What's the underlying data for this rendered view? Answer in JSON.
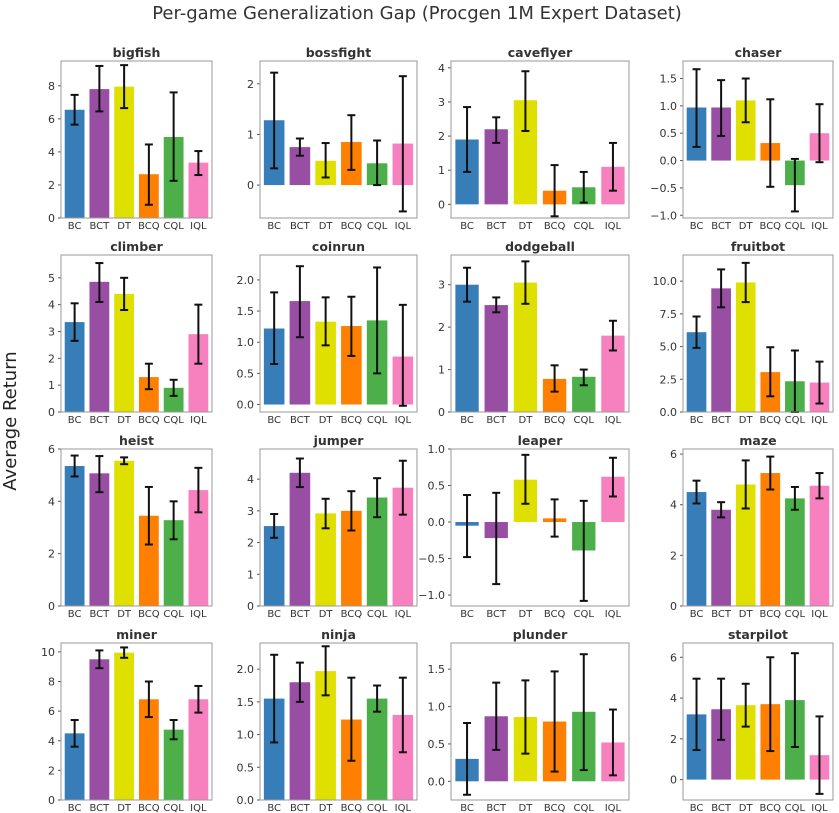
{
  "figure": {
    "title": "Per-game Generalization Gap (Procgen 1M Expert Dataset)",
    "ylabel": "Average Return"
  },
  "colors": {
    "BC": "#377eb8",
    "BCT": "#984ea3",
    "DT": "#dfdf00",
    "BCQ": "#ff7f00",
    "CQL": "#4daf4a",
    "IQL": "#f781bf"
  },
  "chart_data": [
    {
      "type": "bar",
      "title": "bigfish",
      "categories": [
        "BC",
        "BCT",
        "DT",
        "BCQ",
        "CQL",
        "IQL"
      ],
      "values": [
        6.55,
        7.8,
        7.95,
        2.65,
        4.9,
        3.35
      ],
      "err_low": [
        5.65,
        6.45,
        6.65,
        0.8,
        2.25,
        2.6
      ],
      "err_high": [
        7.45,
        9.2,
        9.25,
        4.45,
        7.6,
        4.05
      ],
      "ylim": [
        0,
        9.5
      ],
      "yticks": [
        0,
        2,
        4,
        6,
        8
      ],
      "yticklabels": [
        "0",
        "2",
        "4",
        "6",
        "8"
      ]
    },
    {
      "type": "bar",
      "title": "bossfight",
      "categories": [
        "BC",
        "BCT",
        "DT",
        "BCQ",
        "CQL",
        "IQL"
      ],
      "values": [
        1.28,
        0.75,
        0.48,
        0.85,
        0.43,
        0.82
      ],
      "err_low": [
        0.33,
        0.58,
        0.15,
        0.3,
        0.0,
        -0.52
      ],
      "err_high": [
        2.22,
        0.92,
        0.83,
        1.38,
        0.88,
        2.15
      ],
      "ylim": [
        -0.65,
        2.45
      ],
      "yticks": [
        0,
        1,
        2
      ],
      "yticklabels": [
        "0",
        "1",
        "2"
      ]
    },
    {
      "type": "bar",
      "title": "caveflyer",
      "categories": [
        "BC",
        "BCT",
        "DT",
        "BCQ",
        "CQL",
        "IQL"
      ],
      "values": [
        1.9,
        2.2,
        3.05,
        0.4,
        0.5,
        1.1
      ],
      "err_low": [
        0.95,
        1.8,
        2.15,
        -0.35,
        0.05,
        0.4
      ],
      "err_high": [
        2.85,
        2.55,
        3.9,
        1.15,
        0.95,
        1.8
      ],
      "ylim": [
        -0.4,
        4.2
      ],
      "yticks": [
        0,
        1,
        2,
        3,
        4
      ],
      "yticklabels": [
        "0",
        "1",
        "2",
        "3",
        "4"
      ]
    },
    {
      "type": "bar",
      "title": "chaser",
      "categories": [
        "BC",
        "BCT",
        "DT",
        "BCQ",
        "CQL",
        "IQL"
      ],
      "values": [
        0.97,
        0.97,
        1.1,
        0.32,
        -0.45,
        0.5
      ],
      "err_low": [
        0.25,
        0.45,
        0.7,
        -0.48,
        -0.93,
        -0.03
      ],
      "err_high": [
        1.67,
        1.47,
        1.5,
        1.12,
        0.03,
        1.03
      ],
      "ylim": [
        -1.05,
        1.82
      ],
      "yticks": [
        -1.0,
        -0.5,
        0.0,
        0.5,
        1.0,
        1.5
      ],
      "yticklabels": [
        "−1.0",
        "−0.5",
        "0.0",
        "0.5",
        "1.0",
        "1.5"
      ]
    },
    {
      "type": "bar",
      "title": "climber",
      "categories": [
        "BC",
        "BCT",
        "DT",
        "BCQ",
        "CQL",
        "IQL"
      ],
      "values": [
        3.35,
        4.85,
        4.4,
        1.3,
        0.9,
        2.9
      ],
      "err_low": [
        2.65,
        4.1,
        3.8,
        0.85,
        0.6,
        1.8
      ],
      "err_high": [
        4.05,
        5.55,
        5.0,
        1.8,
        1.2,
        4.0
      ],
      "ylim": [
        0,
        5.85
      ],
      "yticks": [
        0,
        1,
        2,
        3,
        4,
        5
      ],
      "yticklabels": [
        "0",
        "1",
        "2",
        "3",
        "4",
        "5"
      ]
    },
    {
      "type": "bar",
      "title": "coinrun",
      "categories": [
        "BC",
        "BCT",
        "DT",
        "BCQ",
        "CQL",
        "IQL"
      ],
      "values": [
        1.22,
        1.66,
        1.33,
        1.26,
        1.35,
        0.77
      ],
      "err_low": [
        0.65,
        1.08,
        0.95,
        0.78,
        0.5,
        -0.02
      ],
      "err_high": [
        1.8,
        2.22,
        1.72,
        1.73,
        2.2,
        1.6
      ],
      "ylim": [
        -0.12,
        2.4
      ],
      "yticks": [
        0,
        0.5,
        1,
        1.5,
        2
      ],
      "yticklabels": [
        "0.0",
        "0.5",
        "1.0",
        "1.5",
        "2.0"
      ]
    },
    {
      "type": "bar",
      "title": "dodgeball",
      "categories": [
        "BC",
        "BCT",
        "DT",
        "BCQ",
        "CQL",
        "IQL"
      ],
      "values": [
        3.0,
        2.52,
        3.05,
        0.78,
        0.83,
        1.8
      ],
      "err_low": [
        2.6,
        2.35,
        2.55,
        0.48,
        0.63,
        1.45
      ],
      "err_high": [
        3.4,
        2.7,
        3.55,
        1.1,
        1.0,
        2.15
      ],
      "ylim": [
        0,
        3.7
      ],
      "yticks": [
        0,
        1,
        2,
        3
      ],
      "yticklabels": [
        "0",
        "1",
        "2",
        "3"
      ]
    },
    {
      "type": "bar",
      "title": "fruitbot",
      "categories": [
        "BC",
        "BCT",
        "DT",
        "BCQ",
        "CQL",
        "IQL"
      ],
      "values": [
        6.1,
        9.45,
        9.9,
        3.05,
        2.35,
        2.25
      ],
      "err_low": [
        4.9,
        8.0,
        8.4,
        1.2,
        0.0,
        0.65
      ],
      "err_high": [
        7.3,
        10.9,
        11.4,
        4.95,
        4.7,
        3.85
      ],
      "ylim": [
        0,
        12.0
      ],
      "yticks": [
        0,
        2.5,
        5,
        7.5,
        10
      ],
      "yticklabels": [
        "0.0",
        "2.5",
        "5.0",
        "7.5",
        "10.0"
      ]
    },
    {
      "type": "bar",
      "title": "heist",
      "categories": [
        "BC",
        "BCT",
        "DT",
        "BCQ",
        "CQL",
        "IQL"
      ],
      "values": [
        5.35,
        5.07,
        5.55,
        3.45,
        3.28,
        4.43
      ],
      "err_low": [
        4.95,
        4.35,
        5.42,
        2.35,
        2.55,
        3.58
      ],
      "err_high": [
        5.75,
        5.73,
        5.68,
        4.55,
        4.0,
        5.28
      ],
      "ylim": [
        0,
        6.0
      ],
      "yticks": [
        0,
        2,
        4,
        6
      ],
      "yticklabels": [
        "0",
        "2",
        "4",
        "6"
      ]
    },
    {
      "type": "bar",
      "title": "jumper",
      "categories": [
        "BC",
        "BCT",
        "DT",
        "BCQ",
        "CQL",
        "IQL"
      ],
      "values": [
        2.52,
        4.2,
        2.92,
        3.0,
        3.42,
        3.73
      ],
      "err_low": [
        2.15,
        3.75,
        2.45,
        2.38,
        2.8,
        2.88
      ],
      "err_high": [
        2.9,
        4.65,
        3.38,
        3.62,
        4.03,
        4.58
      ],
      "ylim": [
        0,
        4.95
      ],
      "yticks": [
        0,
        1,
        2,
        3,
        4
      ],
      "yticklabels": [
        "0",
        "1",
        "2",
        "3",
        "4"
      ]
    },
    {
      "type": "bar",
      "title": "leaper",
      "categories": [
        "BC",
        "BCT",
        "DT",
        "BCQ",
        "CQL",
        "IQL"
      ],
      "values": [
        -0.05,
        -0.22,
        0.58,
        0.05,
        -0.39,
        0.62
      ],
      "err_low": [
        -0.48,
        -0.85,
        0.25,
        -0.2,
        -1.08,
        0.35
      ],
      "err_high": [
        0.37,
        0.4,
        0.92,
        0.31,
        0.29,
        0.88
      ],
      "ylim": [
        -1.15,
        1.0
      ],
      "yticks": [
        -1,
        -0.5,
        0,
        0.5,
        1
      ],
      "yticklabels": [
        "−1.0",
        "−0.5",
        "0.0",
        "0.5",
        "1.0"
      ]
    },
    {
      "type": "bar",
      "title": "maze",
      "categories": [
        "BC",
        "BCT",
        "DT",
        "BCQ",
        "CQL",
        "IQL"
      ],
      "values": [
        4.5,
        3.8,
        4.8,
        5.25,
        4.25,
        4.75
      ],
      "err_low": [
        4.05,
        3.5,
        3.85,
        4.6,
        3.8,
        4.25
      ],
      "err_high": [
        4.95,
        4.1,
        5.75,
        5.9,
        4.7,
        5.25
      ],
      "ylim": [
        0,
        6.2
      ],
      "yticks": [
        0,
        2,
        4,
        6
      ],
      "yticklabels": [
        "0",
        "2",
        "4",
        "6"
      ]
    },
    {
      "type": "bar",
      "title": "miner",
      "categories": [
        "BC",
        "BCT",
        "DT",
        "BCQ",
        "CQL",
        "IQL"
      ],
      "values": [
        4.5,
        9.5,
        9.95,
        6.8,
        4.75,
        6.8
      ],
      "err_low": [
        3.6,
        8.9,
        9.6,
        5.6,
        4.1,
        5.9
      ],
      "err_high": [
        5.4,
        10.1,
        10.3,
        8.0,
        5.4,
        7.7
      ],
      "ylim": [
        0,
        10.6
      ],
      "yticks": [
        0,
        2,
        4,
        6,
        8,
        10
      ],
      "yticklabels": [
        "0",
        "2",
        "4",
        "6",
        "8",
        "10"
      ]
    },
    {
      "type": "bar",
      "title": "ninja",
      "categories": [
        "BC",
        "BCT",
        "DT",
        "BCQ",
        "CQL",
        "IQL"
      ],
      "values": [
        1.55,
        1.8,
        1.97,
        1.23,
        1.55,
        1.3
      ],
      "err_low": [
        0.88,
        1.5,
        1.6,
        0.6,
        1.35,
        0.73
      ],
      "err_high": [
        2.22,
        2.1,
        2.35,
        1.87,
        1.75,
        1.87
      ],
      "ylim": [
        0,
        2.4
      ],
      "yticks": [
        0,
        0.5,
        1,
        1.5,
        2
      ],
      "yticklabels": [
        "0.0",
        "0.5",
        "1.0",
        "1.5",
        "2.0"
      ]
    },
    {
      "type": "bar",
      "title": "plunder",
      "categories": [
        "BC",
        "BCT",
        "DT",
        "BCQ",
        "CQL",
        "IQL"
      ],
      "values": [
        0.3,
        0.87,
        0.86,
        0.8,
        0.93,
        0.52
      ],
      "err_low": [
        -0.18,
        0.42,
        0.37,
        0.13,
        0.15,
        0.08
      ],
      "err_high": [
        0.78,
        1.32,
        1.35,
        1.47,
        1.7,
        0.96
      ],
      "ylim": [
        -0.25,
        1.85
      ],
      "yticks": [
        0,
        0.5,
        1,
        1.5
      ],
      "yticklabels": [
        "0.0",
        "0.5",
        "1.0",
        "1.5"
      ]
    },
    {
      "type": "bar",
      "title": "starpilot",
      "categories": [
        "BC",
        "BCT",
        "DT",
        "BCQ",
        "CQL",
        "IQL"
      ],
      "values": [
        3.2,
        3.45,
        3.65,
        3.7,
        3.9,
        1.2
      ],
      "err_low": [
        1.45,
        1.95,
        2.6,
        1.4,
        1.6,
        -0.7
      ],
      "err_high": [
        4.95,
        4.95,
        4.7,
        6.0,
        6.2,
        3.1
      ],
      "ylim": [
        -1.0,
        6.7
      ],
      "yticks": [
        0,
        2,
        4,
        6
      ],
      "yticklabels": [
        "0",
        "2",
        "4",
        "6"
      ]
    }
  ]
}
